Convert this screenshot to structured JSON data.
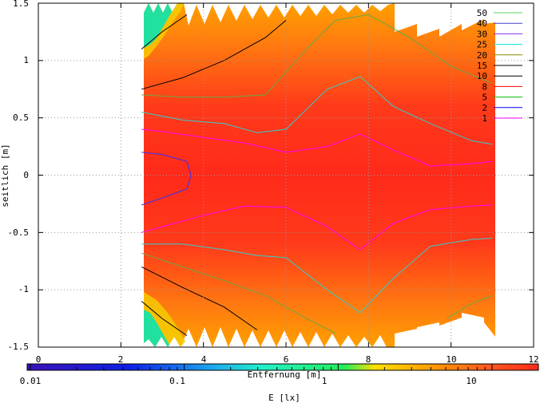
{
  "chart_data": {
    "type": "heatmap",
    "title": "",
    "xlabel": "Entfernung [m]",
    "ylabel": "seitlich [m]",
    "xlim": [
      0,
      12
    ],
    "ylim": [
      -1.5,
      1.5
    ],
    "x_ticks": [
      "0",
      "2",
      "4",
      "6",
      "8",
      "10",
      "12"
    ],
    "y_ticks": [
      "1.5",
      "1",
      "0.5",
      "0",
      "-0.5",
      "-1",
      "-1.5"
    ],
    "grid": true,
    "colorbar": {
      "label": "E [lx]",
      "scale": "log",
      "range": [
        0.01,
        20
      ],
      "ticks": [
        "0.01",
        "0.1",
        "1",
        "10"
      ],
      "colors": [
        "#3b12b8",
        "#0d1fe6",
        "#1ca6f0",
        "#22f0c8",
        "#22ee5a",
        "#ffe000",
        "#ffa200",
        "#ff5a1e",
        "#ff2a1a"
      ]
    },
    "legend": {
      "position": "top-right",
      "entries": [
        {
          "label": "50",
          "color": "#57d957"
        },
        {
          "label": "40",
          "color": "#4040c8"
        },
        {
          "label": "30",
          "color": "#8a2be2"
        },
        {
          "label": "25",
          "color": "#00e5e5"
        },
        {
          "label": "20",
          "color": "#8a8a00"
        },
        {
          "label": "15",
          "color": "#000000"
        },
        {
          "label": "10",
          "color": "#000000"
        },
        {
          "label": "8",
          "color": "#ff0000"
        },
        {
          "label": "5",
          "color": "#00c000"
        },
        {
          "label": "2",
          "color": "#0000ff"
        },
        {
          "label": "1",
          "color": "#ff00ff"
        }
      ]
    },
    "field_x_range": [
      2.5,
      11
    ],
    "contour_lines": [
      {
        "level": "1",
        "color": "#ff00ff",
        "points": [
          [
            2.5,
            0.4
          ],
          [
            3,
            0.38
          ],
          [
            4,
            0.33
          ],
          [
            5,
            0.28
          ],
          [
            6,
            0.2
          ],
          [
            7,
            0.25
          ],
          [
            7.8,
            0.36
          ],
          [
            8.6,
            0.22
          ],
          [
            9.5,
            0.08
          ],
          [
            10.5,
            0.1
          ],
          [
            11,
            0.12
          ]
        ]
      },
      {
        "level": "1",
        "color": "#ff00ff",
        "points": [
          [
            2.5,
            -0.5
          ],
          [
            3,
            -0.45
          ],
          [
            4,
            -0.35
          ],
          [
            5,
            -0.27
          ],
          [
            6,
            -0.28
          ],
          [
            7,
            -0.45
          ],
          [
            7.8,
            -0.65
          ],
          [
            8.6,
            -0.42
          ],
          [
            9.5,
            -0.3
          ],
          [
            10.5,
            -0.27
          ],
          [
            11,
            -0.26
          ]
        ]
      },
      {
        "level": "2",
        "color": "#3030ff",
        "points": [
          [
            2.5,
            0.2
          ],
          [
            3,
            0.18
          ],
          [
            3.6,
            0.12
          ],
          [
            3.7,
            0
          ],
          [
            3.6,
            -0.12
          ],
          [
            3,
            -0.2
          ],
          [
            2.5,
            -0.26
          ]
        ]
      },
      {
        "level": "25",
        "color": "#33cccc",
        "points": [
          [
            2.5,
            0.55
          ],
          [
            3.5,
            0.48
          ],
          [
            4.5,
            0.45
          ],
          [
            5.3,
            0.37
          ],
          [
            6,
            0.4
          ],
          [
            7,
            0.75
          ],
          [
            7.8,
            0.86
          ],
          [
            8.6,
            0.6
          ],
          [
            9.5,
            0.45
          ],
          [
            10.5,
            0.3
          ],
          [
            11,
            0.27
          ]
        ]
      },
      {
        "level": "25",
        "color": "#33cccc",
        "points": [
          [
            2.5,
            -0.6
          ],
          [
            3.5,
            -0.6
          ],
          [
            4.5,
            -0.65
          ],
          [
            5.3,
            -0.7
          ],
          [
            6,
            -0.72
          ],
          [
            7,
            -1.0
          ],
          [
            7.8,
            -1.2
          ],
          [
            8.6,
            -0.9
          ],
          [
            9.5,
            -0.62
          ],
          [
            10.5,
            -0.56
          ],
          [
            11,
            -0.55
          ]
        ]
      },
      {
        "level": "15",
        "color": "#000000",
        "points": [
          [
            2.5,
            0.75
          ],
          [
            3.5,
            0.85
          ],
          [
            4.5,
            1.0
          ],
          [
            5.5,
            1.2
          ],
          [
            6,
            1.35
          ]
        ]
      },
      {
        "level": "10",
        "color": "#000000",
        "points": [
          [
            2.5,
            -0.8
          ],
          [
            3.5,
            -0.98
          ],
          [
            4.5,
            -1.15
          ],
          [
            5.3,
            -1.35
          ]
        ]
      },
      {
        "level": "15",
        "color": "#000000",
        "points": [
          [
            2.5,
            1.1
          ],
          [
            3,
            1.25
          ],
          [
            3.6,
            1.4
          ]
        ]
      },
      {
        "level": "15",
        "color": "#000000",
        "points": [
          [
            2.5,
            -1.1
          ],
          [
            3,
            -1.25
          ],
          [
            3.6,
            -1.4
          ]
        ]
      },
      {
        "level": "5",
        "color": "#66aa44",
        "points": [
          [
            2.5,
            0.7
          ],
          [
            3.5,
            0.68
          ],
          [
            4.5,
            0.68
          ],
          [
            5.5,
            0.7
          ],
          [
            6.5,
            1.1
          ],
          [
            7.2,
            1.35
          ],
          [
            8,
            1.4
          ],
          [
            9,
            1.2
          ],
          [
            10,
            0.95
          ],
          [
            11,
            0.8
          ]
        ]
      },
      {
        "level": "5",
        "color": "#66aa44",
        "points": [
          [
            2.5,
            -0.68
          ],
          [
            3.5,
            -0.8
          ],
          [
            4.5,
            -0.92
          ],
          [
            5.5,
            -1.05
          ],
          [
            6.5,
            -1.25
          ],
          [
            7.2,
            -1.38
          ]
        ]
      },
      {
        "level": "5",
        "color": "#66aa44",
        "points": [
          [
            9.9,
            -1.25
          ],
          [
            10.5,
            -1.12
          ],
          [
            11,
            -1.05
          ]
        ]
      }
    ]
  }
}
